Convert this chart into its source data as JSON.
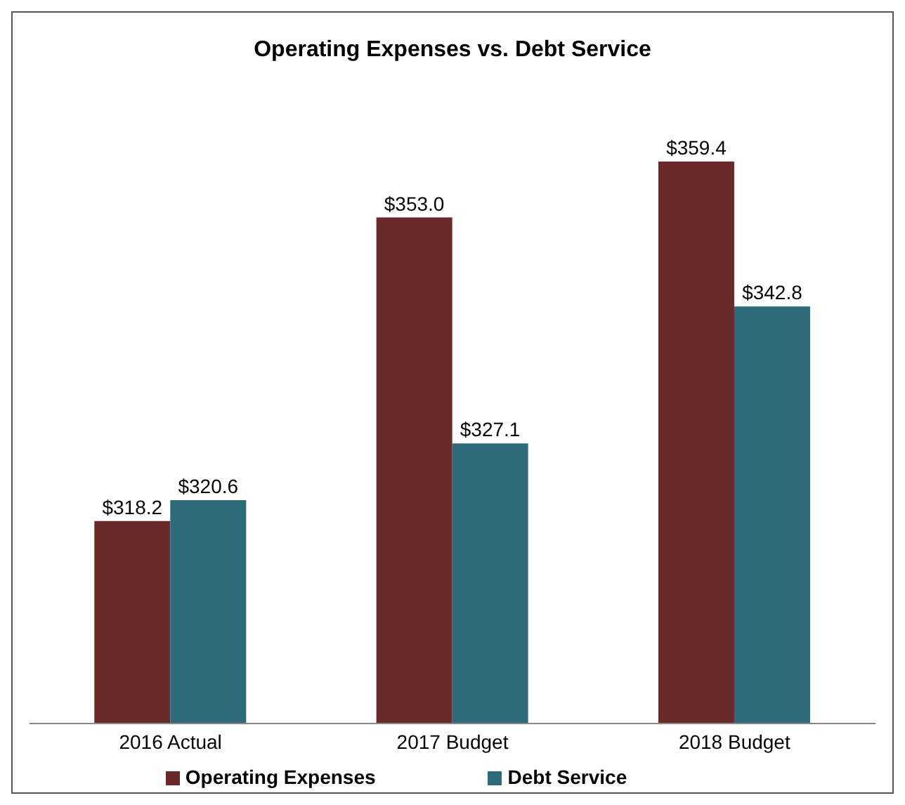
{
  "chart_data": {
    "type": "bar",
    "title": "Operating Expenses vs. Debt Service",
    "categories": [
      "2016 Actual",
      "2017 Budget",
      "2018 Budget"
    ],
    "ylim": [
      295,
      359.4
    ],
    "tick_labels": "x",
    "legend": "bottom",
    "series": [
      {
        "name": "Operating Expenses",
        "color": "#6b2a2a",
        "values": [
          318.2,
          353.0,
          359.4
        ],
        "value_labels": [
          "$318.2",
          "$353.0",
          "$359.4"
        ]
      },
      {
        "name": "Debt Service",
        "color": "#2e6b7a",
        "values": [
          320.6,
          327.1,
          342.8
        ],
        "value_labels": [
          "$320.6",
          "$327.1",
          "$342.8"
        ]
      }
    ]
  }
}
